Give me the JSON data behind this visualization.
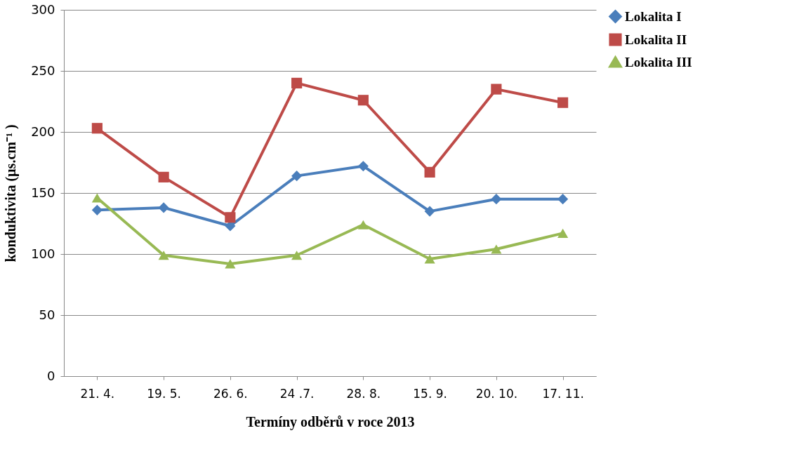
{
  "chart_data": {
    "type": "line",
    "xlabel": "Termíny odběrů v roce 2013",
    "ylabel": "konduktivita (µs.cm⁻¹ )",
    "categories": [
      "21. 4.",
      "19. 5.",
      "26. 6.",
      "24 .7.",
      "28. 8.",
      "15. 9.",
      "20. 10.",
      "17. 11."
    ],
    "series": [
      {
        "name": "Lokalita I",
        "color": "#4a7ebb",
        "marker": "diamond",
        "values": [
          136,
          138,
          123,
          164,
          172,
          135,
          145,
          145
        ]
      },
      {
        "name": "Lokalita II",
        "color": "#be4b48",
        "marker": "square",
        "values": [
          203,
          163,
          130,
          240,
          226,
          167,
          235,
          224
        ]
      },
      {
        "name": "Lokalita III",
        "color": "#98b954",
        "marker": "triangle",
        "values": [
          146,
          99,
          92,
          99,
          124,
          96,
          104,
          117
        ]
      }
    ],
    "ylim": [
      0,
      300
    ],
    "yticks": [
      0,
      50,
      100,
      150,
      200,
      250,
      300
    ],
    "grid": "y",
    "legend": "right"
  }
}
